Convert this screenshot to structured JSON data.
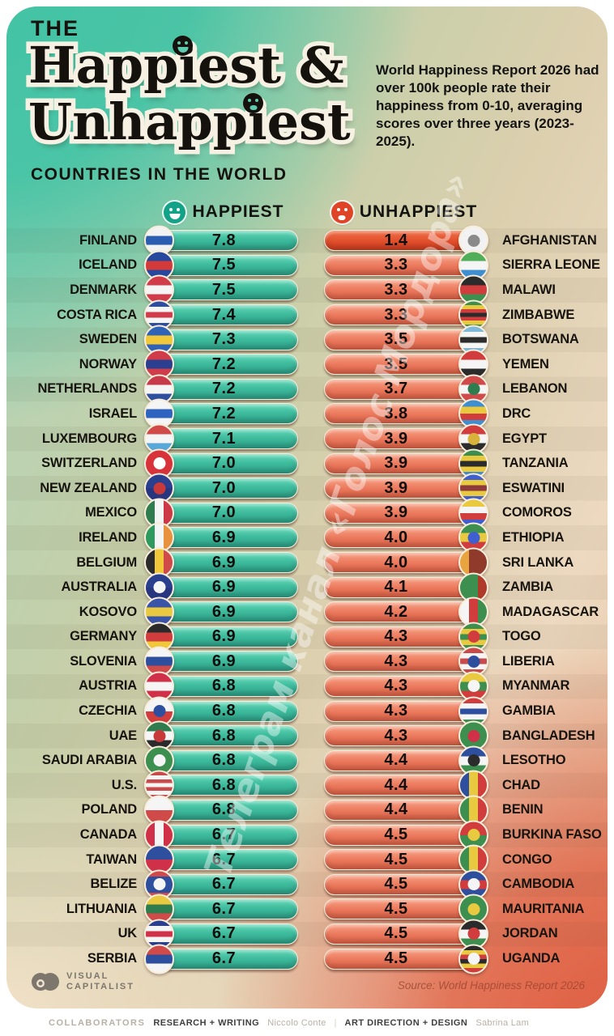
{
  "header": {
    "kicker": "THE",
    "title_line1": "Happiest &",
    "title_line2": "Unhappiest",
    "subtitle": "COUNTRIES IN THE WORLD",
    "description": "World Happiness Report 2026 had over 100k people rate their happiness from 0-10, averaging scores over three years (2023-2025)."
  },
  "columns": {
    "happiest_label": "HAPPIEST",
    "unhappiest_label": "UNHAPPIEST"
  },
  "watermark_text": "Телеграм канал «Голос Мордора»",
  "footer": {
    "brand_line1": "VISUAL",
    "brand_line2": "CAPITALIST",
    "source": "Source: World Happiness Report 2026"
  },
  "collaborators": {
    "label": "COLLABORATORS",
    "research_label": "RESEARCH + WRITING",
    "research_name": "Niccolo Conte",
    "divider": "|",
    "design_label": "ART DIRECTION + DESIGN",
    "design_name": "Sabrina Lam"
  },
  "colors": {
    "happy_bar": "#3fbc9d",
    "unhappy_bar": "#ec7a5e",
    "unhappy_accent_bar": "#e14f2c",
    "bar_border": "#f7edda",
    "happy_icon": "#12a287",
    "unhappy_icon": "#df4426",
    "card_teal": "#3fc3a4",
    "card_tan": "#dbcfae",
    "card_salmon": "#df563a"
  },
  "chart_data": {
    "type": "table",
    "title": "The Happiest & Unhappiest Countries in the World",
    "source": "World Happiness Report 2026",
    "score_scale": [
      0,
      10
    ],
    "series": [
      {
        "name": "Happiest",
        "countries": [
          "FINLAND",
          "ICELAND",
          "DENMARK",
          "COSTA RICA",
          "SWEDEN",
          "NORWAY",
          "NETHERLANDS",
          "ISRAEL",
          "LUXEMBOURG",
          "SWITZERLAND",
          "NEW ZEALAND",
          "MEXICO",
          "IRELAND",
          "BELGIUM",
          "AUSTRALIA",
          "KOSOVO",
          "GERMANY",
          "SLOVENIA",
          "AUSTRIA",
          "CZECHIA",
          "UAE",
          "SAUDI ARABIA",
          "U.S.",
          "POLAND",
          "CANADA",
          "TAIWAN",
          "BELIZE",
          "LITHUANIA",
          "UK",
          "SERBIA"
        ],
        "scores": [
          7.8,
          7.5,
          7.5,
          7.4,
          7.3,
          7.2,
          7.2,
          7.2,
          7.1,
          7.0,
          7.0,
          7.0,
          6.9,
          6.9,
          6.9,
          6.9,
          6.9,
          6.9,
          6.8,
          6.8,
          6.8,
          6.8,
          6.8,
          6.8,
          6.7,
          6.7,
          6.7,
          6.7,
          6.7,
          6.7
        ]
      },
      {
        "name": "Unhappiest",
        "countries": [
          "AFGHANISTAN",
          "SIERRA LEONE",
          "MALAWI",
          "ZIMBABWE",
          "BOTSWANA",
          "YEMEN",
          "LEBANON",
          "DRC",
          "EGYPT",
          "TANZANIA",
          "ESWATINI",
          "COMOROS",
          "ETHIOPIA",
          "SRI LANKA",
          "ZAMBIA",
          "MADAGASCAR",
          "TOGO",
          "LIBERIA",
          "MYANMAR",
          "GAMBIA",
          "BANGLADESH",
          "LESOTHO",
          "CHAD",
          "BENIN",
          "BURKINA FASO",
          "CONGO",
          "CAMBODIA",
          "MAURITANIA",
          "JORDAN",
          "UGANDA"
        ],
        "scores": [
          1.4,
          3.3,
          3.3,
          3.3,
          3.5,
          3.5,
          3.7,
          3.8,
          3.9,
          3.9,
          3.9,
          3.9,
          4.0,
          4.0,
          4.1,
          4.2,
          4.3,
          4.3,
          4.3,
          4.3,
          4.3,
          4.4,
          4.4,
          4.4,
          4.5,
          4.5,
          4.5,
          4.5,
          4.5,
          4.5
        ]
      }
    ]
  },
  "rows": [
    {
      "h_country": "FINLAND",
      "h_score": "7.8",
      "h_flag": {
        "colors": [
          "#f2f2f2",
          "#2a5db0",
          "#f2f2f2"
        ]
      },
      "u_country": "AFGHANISTAN",
      "u_score": "1.4",
      "u_flag": {
        "colors": [
          "#f2f2f2"
        ],
        "dot": "#8a8a8a"
      },
      "u_accent": true
    },
    {
      "h_country": "ICELAND",
      "h_score": "7.5",
      "h_flag": {
        "colors": [
          "#27489c",
          "#d43a3a",
          "#27489c"
        ]
      },
      "u_country": "SIERRA LEONE",
      "u_score": "3.3",
      "u_flag": {
        "colors": [
          "#4fae57",
          "#f5f5f5",
          "#3f8fd0"
        ]
      }
    },
    {
      "h_country": "DENMARK",
      "h_score": "7.5",
      "h_flag": {
        "colors": [
          "#d13c4b",
          "#f5f5f5",
          "#d13c4b"
        ]
      },
      "u_country": "MALAWI",
      "u_score": "3.3",
      "u_flag": {
        "colors": [
          "#2b2b2b",
          "#d13c3c",
          "#3d8f4f"
        ]
      }
    },
    {
      "h_country": "COSTA RICA",
      "h_score": "7.4",
      "h_flag": {
        "colors": [
          "#2b4ea3",
          "#f5f5f5",
          "#d13c4b",
          "#f5f5f5",
          "#2b4ea3"
        ]
      },
      "u_country": "ZIMBABWE",
      "u_score": "3.3",
      "u_flag": {
        "colors": [
          "#3d8f4f",
          "#e8c93f",
          "#d13c3c",
          "#2b2b2b",
          "#d13c3c",
          "#e8c93f",
          "#3d8f4f"
        ]
      }
    },
    {
      "h_country": "SWEDEN",
      "h_score": "7.3",
      "h_flag": {
        "colors": [
          "#2f63b5",
          "#f0c83a",
          "#2f63b5"
        ]
      },
      "u_country": "BOTSWANA",
      "u_score": "3.5",
      "u_flag": {
        "colors": [
          "#7fb8d8",
          "#f5f5f5",
          "#2b2b2b",
          "#f5f5f5",
          "#7fb8d8"
        ]
      }
    },
    {
      "h_country": "NORWAY",
      "h_score": "7.2",
      "h_flag": {
        "colors": [
          "#d13c4b",
          "#2a3f8f",
          "#d13c4b"
        ]
      },
      "u_country": "YEMEN",
      "u_score": "3.5",
      "u_flag": {
        "colors": [
          "#d13c3c",
          "#f5f5f5",
          "#2b2b2b"
        ]
      }
    },
    {
      "h_country": "NETHERLANDS",
      "h_score": "7.2",
      "h_flag": {
        "colors": [
          "#c8394a",
          "#f5f5f5",
          "#2e4f9e"
        ]
      },
      "u_country": "LEBANON",
      "u_score": "3.7",
      "u_flag": {
        "colors": [
          "#d14a4a",
          "#f5f5f5",
          "#d14a4a"
        ],
        "dot": "#2f7d4f"
      }
    },
    {
      "h_country": "ISRAEL",
      "h_score": "7.2",
      "h_flag": {
        "colors": [
          "#f5f5f5",
          "#2e63c0",
          "#f5f5f5"
        ]
      },
      "u_country": "DRC",
      "u_score": "3.8",
      "u_flag": {
        "colors": [
          "#3f8fd0",
          "#e8c93f",
          "#d13c3c",
          "#3f8fd0"
        ]
      }
    },
    {
      "h_country": "LUXEMBOURG",
      "h_score": "7.1",
      "h_flag": {
        "colors": [
          "#d14a4a",
          "#f5f5f5",
          "#57a8d8"
        ]
      },
      "u_country": "EGYPT",
      "u_score": "3.9",
      "u_flag": {
        "colors": [
          "#d13c3c",
          "#f5f5f5",
          "#2b2b2b"
        ],
        "dot": "#d8b23a"
      }
    },
    {
      "h_country": "SWITZERLAND",
      "h_score": "7.0",
      "h_flag": {
        "colors": [
          "#d8333a"
        ],
        "dot": "#ffffff"
      },
      "u_country": "TANZANIA",
      "u_score": "3.9",
      "u_flag": {
        "colors": [
          "#3d8f4f",
          "#e8c93f",
          "#2b2b2b",
          "#e8c93f",
          "#3f8fd0"
        ]
      }
    },
    {
      "h_country": "NEW ZEALAND",
      "h_score": "7.0",
      "h_flag": {
        "colors": [
          "#2b3f8f",
          "#27367f"
        ],
        "dot": "#c83a3a"
      },
      "u_country": "ESWATINI",
      "u_score": "3.9",
      "u_flag": {
        "colors": [
          "#3f5fd0",
          "#e8c93f",
          "#8f3a3a",
          "#e8c93f",
          "#3f5fd0"
        ]
      }
    },
    {
      "h_country": "MEXICO",
      "h_score": "7.0",
      "h_flag": {
        "dir": "v",
        "colors": [
          "#2f7d4f",
          "#f5f5f5",
          "#ce3745"
        ]
      },
      "u_country": "COMOROS",
      "u_score": "3.9",
      "u_flag": {
        "colors": [
          "#e8c93f",
          "#f5f5f5",
          "#d13c3c",
          "#3f5fd0"
        ]
      }
    },
    {
      "h_country": "IRELAND",
      "h_score": "6.9",
      "h_flag": {
        "dir": "v",
        "colors": [
          "#2f9a5d",
          "#f5f5f5",
          "#e8923f"
        ]
      },
      "u_country": "ETHIOPIA",
      "u_score": "4.0",
      "u_flag": {
        "colors": [
          "#3d8f4f",
          "#e8c93f",
          "#d13c3c"
        ],
        "dot": "#3f5fd0"
      }
    },
    {
      "h_country": "BELGIUM",
      "h_score": "6.9",
      "h_flag": {
        "dir": "v",
        "colors": [
          "#2b2b2b",
          "#f0c83a",
          "#d14a4a"
        ]
      },
      "u_country": "SRI LANKA",
      "u_score": "4.0",
      "u_flag": {
        "dir": "v",
        "colors": [
          "#e8a53f",
          "#8f3a2a",
          "#8f3a2a"
        ]
      }
    },
    {
      "h_country": "AUSTRALIA",
      "h_score": "6.9",
      "h_flag": {
        "colors": [
          "#2b3f8f",
          "#27367f"
        ],
        "dot": "#f5f5f5"
      },
      "u_country": "ZAMBIA",
      "u_score": "4.1",
      "u_flag": {
        "dir": "v",
        "colors": [
          "#3d8f4f",
          "#3d8f4f",
          "#b03a2a"
        ]
      }
    },
    {
      "h_country": "KOSOVO",
      "h_score": "6.9",
      "h_flag": {
        "colors": [
          "#3a55a8",
          "#e8c93f",
          "#3a55a8"
        ]
      },
      "u_country": "MADAGASCAR",
      "u_score": "4.2",
      "u_flag": {
        "dir": "v",
        "colors": [
          "#f5f5f5",
          "#d13c3c",
          "#3d8f4f"
        ]
      }
    },
    {
      "h_country": "GERMANY",
      "h_score": "6.9",
      "h_flag": {
        "colors": [
          "#2b2b2b",
          "#d13c3c",
          "#f0c83a"
        ]
      },
      "u_country": "TOGO",
      "u_score": "4.3",
      "u_flag": {
        "colors": [
          "#3d8f4f",
          "#e8c93f",
          "#3d8f4f",
          "#e8c93f",
          "#3d8f4f"
        ],
        "dot": "#d13c3c"
      }
    },
    {
      "h_country": "SLOVENIA",
      "h_score": "6.9",
      "h_flag": {
        "colors": [
          "#f5f5f5",
          "#2e4f9e",
          "#d14a4a"
        ]
      },
      "u_country": "LIBERIA",
      "u_score": "4.3",
      "u_flag": {
        "colors": [
          "#c94a4a",
          "#f5f5f5",
          "#c94a4a",
          "#f5f5f5",
          "#c94a4a"
        ],
        "dot": "#2e4f9e"
      }
    },
    {
      "h_country": "AUSTRIA",
      "h_score": "6.8",
      "h_flag": {
        "colors": [
          "#d13148",
          "#f5f5f5",
          "#d13148"
        ]
      },
      "u_country": "MYANMAR",
      "u_score": "4.3",
      "u_flag": {
        "colors": [
          "#e8c93f",
          "#3d8f4f",
          "#d13c3c"
        ],
        "dot": "#f5f5f5"
      }
    },
    {
      "h_country": "CZECHIA",
      "h_score": "6.8",
      "h_flag": {
        "colors": [
          "#f5f5f5",
          "#d13c3c"
        ],
        "dot": "#2e4f9e"
      },
      "u_country": "GAMBIA",
      "u_score": "4.3",
      "u_flag": {
        "colors": [
          "#d13c3c",
          "#f5f5f5",
          "#2e4f9e",
          "#f5f5f5",
          "#3d8f4f"
        ]
      }
    },
    {
      "h_country": "UAE",
      "h_score": "6.8",
      "h_flag": {
        "colors": [
          "#2f7d4f",
          "#f5f5f5",
          "#2b2b2b"
        ],
        "dot": "#c83a3a"
      },
      "u_country": "BANGLADESH",
      "u_score": "4.3",
      "u_flag": {
        "colors": [
          "#3d8f4f"
        ],
        "dot": "#d13148"
      }
    },
    {
      "h_country": "SAUDI ARABIA",
      "h_score": "6.8",
      "h_flag": {
        "colors": [
          "#3d8f4f"
        ],
        "dot": "#f5f5f5"
      },
      "u_country": "LESOTHO",
      "u_score": "4.4",
      "u_flag": {
        "colors": [
          "#2e4f9e",
          "#f5f5f5",
          "#3d8f4f"
        ],
        "dot": "#2b2b2b"
      }
    },
    {
      "h_country": "U.S.",
      "h_score": "6.8",
      "h_flag": {
        "colors": [
          "#c94a4a",
          "#f5f5f5",
          "#c94a4a",
          "#f5f5f5",
          "#c94a4a",
          "#f5f5f5",
          "#c94a4a"
        ]
      },
      "u_country": "CHAD",
      "u_score": "4.4",
      "u_flag": {
        "dir": "v",
        "colors": [
          "#2e4f9e",
          "#e8c93f",
          "#d13c3c"
        ]
      }
    },
    {
      "h_country": "POLAND",
      "h_score": "6.8",
      "h_flag": {
        "colors": [
          "#f5f5f5",
          "#d14a4a"
        ]
      },
      "u_country": "BENIN",
      "u_score": "4.4",
      "u_flag": {
        "dir": "v",
        "colors": [
          "#3d8f4f",
          "#e8c93f",
          "#d13c3c"
        ]
      }
    },
    {
      "h_country": "CANADA",
      "h_score": "6.7",
      "h_flag": {
        "dir": "v",
        "colors": [
          "#d13148",
          "#f5f5f5",
          "#d13148"
        ]
      },
      "u_country": "BURKINA FASO",
      "u_score": "4.5",
      "u_flag": {
        "colors": [
          "#d13c3c",
          "#3d8f4f"
        ],
        "dot": "#e8c93f"
      }
    },
    {
      "h_country": "TAIWAN",
      "h_score": "6.7",
      "h_flag": {
        "colors": [
          "#2e4f9e",
          "#d13148"
        ]
      },
      "u_country": "CONGO",
      "u_score": "4.5",
      "u_flag": {
        "dir": "v",
        "colors": [
          "#3d8f4f",
          "#e8c93f",
          "#d13c3c"
        ]
      }
    },
    {
      "h_country": "BELIZE",
      "h_score": "6.7",
      "h_flag": {
        "colors": [
          "#d14a4a",
          "#2e4f9e",
          "#2e4f9e",
          "#2e4f9e",
          "#d14a4a"
        ],
        "dot": "#f5f5f5"
      },
      "u_country": "CAMBODIA",
      "u_score": "4.5",
      "u_flag": {
        "colors": [
          "#2e4f9e",
          "#d13c3c",
          "#2e4f9e"
        ],
        "dot": "#f5f5f5"
      }
    },
    {
      "h_country": "LITHUANIA",
      "h_score": "6.7",
      "h_flag": {
        "colors": [
          "#e8c93f",
          "#2f7d4f",
          "#d14a4a"
        ]
      },
      "u_country": "MAURITANIA",
      "u_score": "4.5",
      "u_flag": {
        "colors": [
          "#3d8f4f"
        ],
        "dot": "#e8c93f"
      }
    },
    {
      "h_country": "UK",
      "h_score": "6.7",
      "h_flag": {
        "colors": [
          "#2b3f8f",
          "#f5f5f5",
          "#d13148",
          "#f5f5f5",
          "#2b3f8f"
        ]
      },
      "u_country": "JORDAN",
      "u_score": "4.5",
      "u_flag": {
        "colors": [
          "#2b2b2b",
          "#f5f5f5",
          "#3d8f4f"
        ],
        "dot": "#d13c3c"
      }
    },
    {
      "h_country": "SERBIA",
      "h_score": "6.7",
      "h_flag": {
        "colors": [
          "#d14a4a",
          "#2e4f9e",
          "#f5f5f5"
        ]
      },
      "u_country": "UGANDA",
      "u_score": "4.5",
      "u_flag": {
        "colors": [
          "#2b2b2b",
          "#e8c93f",
          "#d13c3c",
          "#2b2b2b",
          "#e8c93f",
          "#d13c3c"
        ],
        "dot": "#f5f5f5"
      }
    }
  ]
}
